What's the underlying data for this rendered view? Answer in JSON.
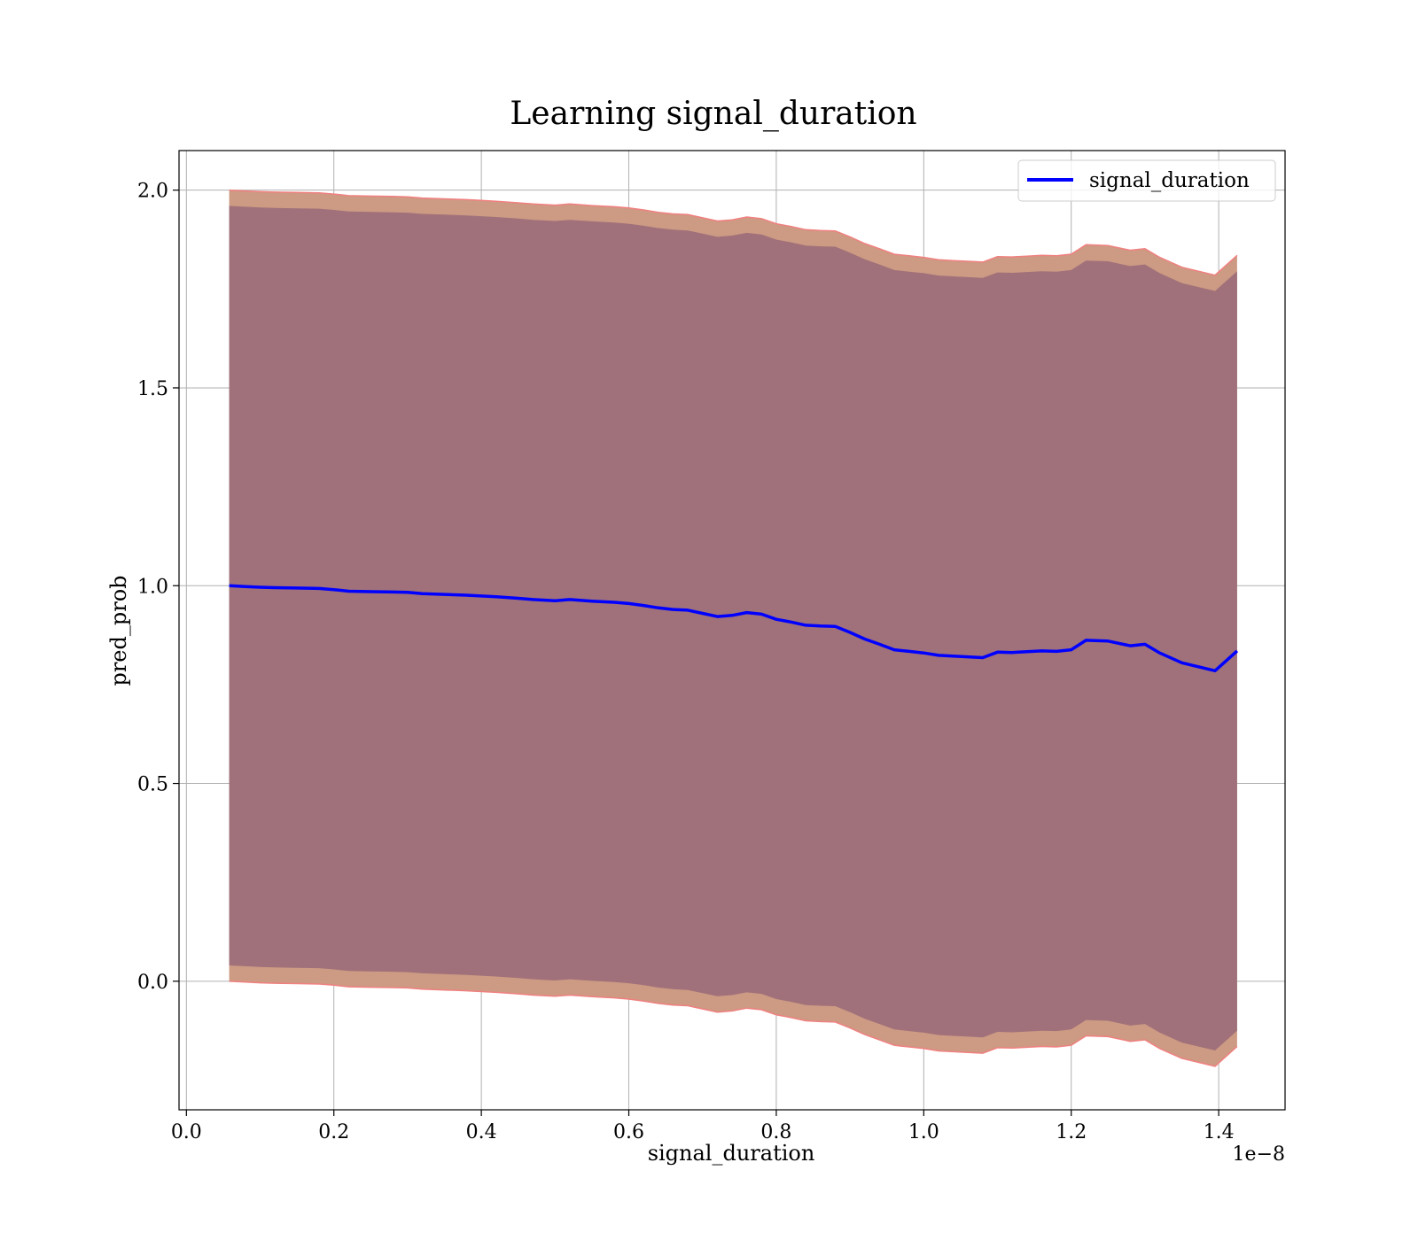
{
  "chart_data": {
    "type": "line",
    "title": "Learning signal_duration",
    "xlabel": "signal_duration",
    "ylabel": "pred_prob",
    "x_offset_text": "1e−8",
    "xlim": [
      -0.01,
      1.49
    ],
    "ylim": [
      -0.325,
      2.1
    ],
    "x_ticks": [
      0.0,
      0.2,
      0.4,
      0.6,
      0.8,
      1.0,
      1.2,
      1.4
    ],
    "x_tick_labels": [
      "0.0",
      "0.2",
      "0.4",
      "0.6",
      "0.8",
      "1.0",
      "1.2",
      "1.4"
    ],
    "y_ticks": [
      0.0,
      0.5,
      1.0,
      1.5,
      2.0
    ],
    "y_tick_labels": [
      "0.0",
      "0.5",
      "1.0",
      "1.5",
      "2.0"
    ],
    "grid": true,
    "legend_position": "top-right",
    "colors": {
      "line": "#0000ff",
      "outer_band": "#cd9a83",
      "inner_band": "#a0717a",
      "band_edge": "#f08080",
      "grid": "#b0b0b0"
    },
    "series": [
      {
        "name": "signal_duration",
        "x": [
          0.058,
          0.08,
          0.1,
          0.12,
          0.15,
          0.18,
          0.2,
          0.22,
          0.25,
          0.28,
          0.3,
          0.32,
          0.35,
          0.38,
          0.4,
          0.42,
          0.45,
          0.47,
          0.5,
          0.52,
          0.55,
          0.58,
          0.6,
          0.62,
          0.64,
          0.66,
          0.68,
          0.7,
          0.72,
          0.74,
          0.76,
          0.78,
          0.8,
          0.82,
          0.84,
          0.86,
          0.88,
          0.9,
          0.92,
          0.94,
          0.96,
          0.98,
          1.0,
          1.02,
          1.04,
          1.06,
          1.08,
          1.1,
          1.12,
          1.14,
          1.16,
          1.18,
          1.2,
          1.22,
          1.25,
          1.28,
          1.3,
          1.32,
          1.35,
          1.395,
          1.425
        ],
        "values": [
          1.0,
          0.998,
          0.996,
          0.995,
          0.994,
          0.993,
          0.99,
          0.986,
          0.985,
          0.984,
          0.983,
          0.98,
          0.978,
          0.976,
          0.974,
          0.972,
          0.968,
          0.965,
          0.962,
          0.965,
          0.961,
          0.958,
          0.955,
          0.95,
          0.944,
          0.94,
          0.938,
          0.93,
          0.922,
          0.925,
          0.932,
          0.928,
          0.915,
          0.908,
          0.9,
          0.898,
          0.897,
          0.882,
          0.865,
          0.852,
          0.838,
          0.834,
          0.83,
          0.824,
          0.822,
          0.82,
          0.818,
          0.832,
          0.831,
          0.833,
          0.835,
          0.834,
          0.838,
          0.862,
          0.86,
          0.848,
          0.852,
          0.83,
          0.805,
          0.785,
          0.835
        ],
        "band_outer_upper": [
          2.0,
          1.998,
          1.996,
          1.995,
          1.994,
          1.993,
          1.99,
          1.986,
          1.985,
          1.984,
          1.983,
          1.98,
          1.978,
          1.976,
          1.974,
          1.972,
          1.968,
          1.965,
          1.962,
          1.965,
          1.961,
          1.958,
          1.955,
          1.95,
          1.944,
          1.94,
          1.938,
          1.93,
          1.922,
          1.925,
          1.932,
          1.928,
          1.915,
          1.908,
          1.9,
          1.898,
          1.897,
          1.882,
          1.865,
          1.852,
          1.838,
          1.834,
          1.83,
          1.824,
          1.822,
          1.82,
          1.818,
          1.832,
          1.831,
          1.833,
          1.835,
          1.834,
          1.838,
          1.862,
          1.86,
          1.848,
          1.852,
          1.83,
          1.805,
          1.785,
          1.835
        ],
        "band_inner_upper": [
          1.96,
          1.958,
          1.956,
          1.955,
          1.954,
          1.953,
          1.95,
          1.946,
          1.945,
          1.944,
          1.943,
          1.94,
          1.938,
          1.936,
          1.934,
          1.932,
          1.928,
          1.925,
          1.922,
          1.925,
          1.921,
          1.918,
          1.915,
          1.91,
          1.904,
          1.9,
          1.898,
          1.89,
          1.882,
          1.885,
          1.892,
          1.888,
          1.875,
          1.868,
          1.86,
          1.858,
          1.857,
          1.842,
          1.825,
          1.812,
          1.798,
          1.794,
          1.79,
          1.784,
          1.782,
          1.78,
          1.778,
          1.792,
          1.791,
          1.793,
          1.795,
          1.794,
          1.798,
          1.822,
          1.82,
          1.808,
          1.812,
          1.79,
          1.765,
          1.745,
          1.795
        ],
        "band_inner_lower": [
          0.04,
          0.038,
          0.036,
          0.035,
          0.034,
          0.033,
          0.03,
          0.026,
          0.025,
          0.024,
          0.023,
          0.02,
          0.018,
          0.016,
          0.014,
          0.012,
          0.008,
          0.005,
          0.002,
          0.005,
          0.001,
          -0.002,
          -0.005,
          -0.01,
          -0.016,
          -0.02,
          -0.022,
          -0.03,
          -0.038,
          -0.035,
          -0.028,
          -0.032,
          -0.045,
          -0.052,
          -0.06,
          -0.062,
          -0.063,
          -0.078,
          -0.095,
          -0.108,
          -0.122,
          -0.126,
          -0.13,
          -0.136,
          -0.138,
          -0.14,
          -0.142,
          -0.128,
          -0.129,
          -0.127,
          -0.125,
          -0.126,
          -0.122,
          -0.098,
          -0.1,
          -0.112,
          -0.108,
          -0.13,
          -0.155,
          -0.175,
          -0.125
        ],
        "band_outer_lower": [
          0.0,
          -0.002,
          -0.004,
          -0.005,
          -0.006,
          -0.007,
          -0.01,
          -0.014,
          -0.015,
          -0.016,
          -0.017,
          -0.02,
          -0.022,
          -0.024,
          -0.026,
          -0.028,
          -0.032,
          -0.035,
          -0.038,
          -0.035,
          -0.039,
          -0.042,
          -0.045,
          -0.05,
          -0.056,
          -0.06,
          -0.062,
          -0.07,
          -0.078,
          -0.075,
          -0.068,
          -0.072,
          -0.085,
          -0.092,
          -0.1,
          -0.102,
          -0.103,
          -0.118,
          -0.135,
          -0.148,
          -0.162,
          -0.166,
          -0.17,
          -0.176,
          -0.178,
          -0.18,
          -0.182,
          -0.168,
          -0.169,
          -0.167,
          -0.165,
          -0.166,
          -0.162,
          -0.138,
          -0.14,
          -0.152,
          -0.148,
          -0.17,
          -0.195,
          -0.215,
          -0.165
        ]
      }
    ]
  }
}
